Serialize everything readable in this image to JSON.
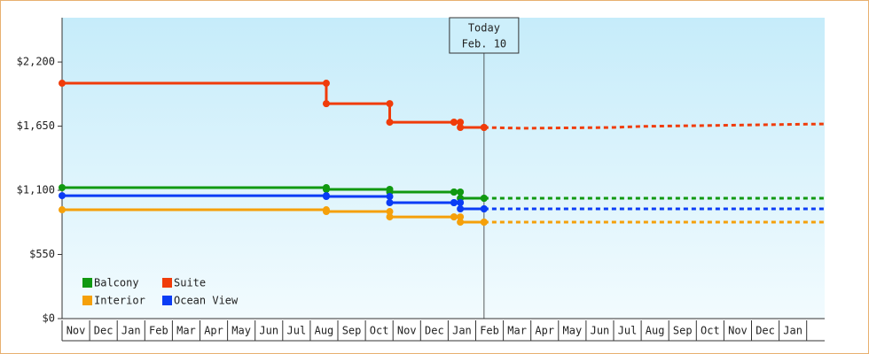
{
  "chart_data": {
    "type": "step-line",
    "yticks": [
      {
        "value": 0,
        "label": "$0"
      },
      {
        "value": 550,
        "label": "$550"
      },
      {
        "value": 1100,
        "label": "$1,100"
      },
      {
        "value": 1650,
        "label": "$1,650"
      },
      {
        "value": 2200,
        "label": "$2,200"
      }
    ],
    "ylim": [
      0,
      2580
    ],
    "xlim": [
      0,
      27.65
    ],
    "months": [
      "Nov",
      "Dec",
      "Jan",
      "Feb",
      "Mar",
      "Apr",
      "May",
      "Jun",
      "Jul",
      "Aug",
      "Sep",
      "Oct",
      "Nov",
      "Dec",
      "Jan",
      "Feb",
      "Mar",
      "Apr",
      "May",
      "Jun",
      "Jul",
      "Aug",
      "Sep",
      "Oct",
      "Nov",
      "Dec",
      "Jan"
    ],
    "x": [
      0,
      9.58,
      11.88,
      14.21,
      14.44,
      15.3
    ],
    "forecast_x": [
      15.3,
      16.7,
      20.0,
      21.0,
      27.65
    ],
    "today": {
      "x": 15.3,
      "label": "Today",
      "date": "Feb. 10"
    },
    "series": [
      {
        "name": "Balcony",
        "color": "#119911",
        "values": [
          1123,
          1108,
          1085,
          1085,
          1032,
          1032
        ],
        "forecast": [
          1032,
          1032,
          1032,
          1032,
          1032
        ]
      },
      {
        "name": "Suite",
        "color": "#f03c0a",
        "values": [
          2018,
          1843,
          1684,
          1684,
          1639,
          1639
        ],
        "forecast": [
          1639,
          1632,
          1639,
          1648,
          1669
        ]
      },
      {
        "name": "Interior",
        "color": "#f5a00a",
        "values": [
          933,
          918,
          872,
          872,
          827,
          827
        ],
        "forecast": [
          827,
          827,
          827,
          827,
          827
        ]
      },
      {
        "name": "Ocean View",
        "color": "#0a3cf5",
        "values": [
          1054,
          1047,
          994,
          994,
          941,
          941
        ],
        "forecast": [
          941,
          941,
          941,
          941,
          941
        ]
      }
    ]
  }
}
